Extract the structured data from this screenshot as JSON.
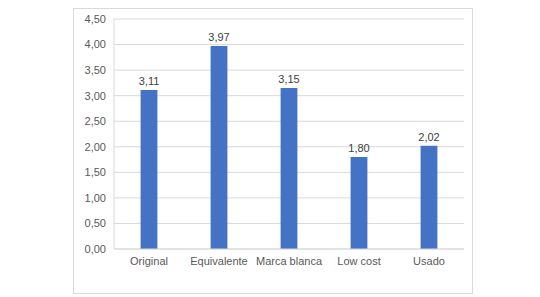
{
  "chart_data": {
    "type": "bar",
    "categories": [
      "Original",
      "Equivalente",
      "Marca blanca",
      "Low cost",
      "Usado"
    ],
    "values": [
      3.11,
      3.97,
      3.15,
      1.8,
      2.02
    ],
    "value_labels": [
      "3,11",
      "3,97",
      "3,15",
      "1,80",
      "2,02"
    ],
    "data_labels": true,
    "color": "#4472c4",
    "ylim": [
      0,
      4.5
    ],
    "yticks": [
      {
        "value": 0,
        "label": "0,00"
      },
      {
        "value": 0.5,
        "label": "0,50"
      },
      {
        "value": 1,
        "label": "1,00"
      },
      {
        "value": 1.5,
        "label": "1,50"
      },
      {
        "value": 2,
        "label": "2,00"
      },
      {
        "value": 2.5,
        "label": "2,50"
      },
      {
        "value": 3,
        "label": "3,00"
      },
      {
        "value": 3.5,
        "label": "3,50"
      },
      {
        "value": 4,
        "label": "4,00"
      },
      {
        "value": 4.5,
        "label": "4,50"
      }
    ],
    "grid": true
  }
}
